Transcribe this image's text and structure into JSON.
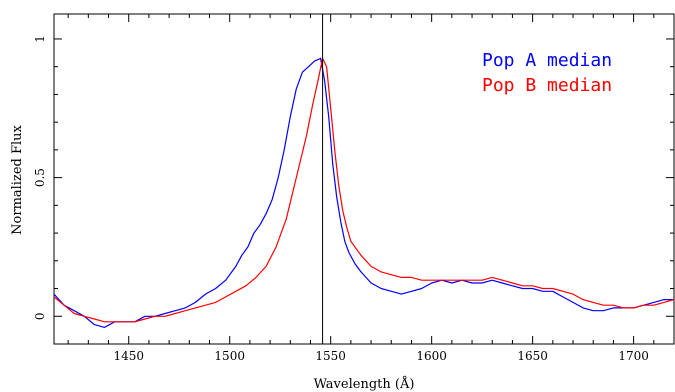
{
  "chart_data": {
    "type": "line",
    "xlabel": "Wavelength (Å)",
    "ylabel": "Normalized Flux",
    "xlim": [
      1413,
      1720
    ],
    "ylim": [
      -0.1,
      1.09
    ],
    "x_ticks": [
      "1450",
      "1500",
      "1550",
      "1600",
      "1650",
      "1700"
    ],
    "y_ticks": [
      "0",
      "0.5",
      "1"
    ],
    "vertical_line_x": 1546,
    "legend_position": "top-right",
    "grid": false,
    "series": [
      {
        "name": "Pop A median",
        "color": "#0000ff",
        "x": [
          1413,
          1418,
          1423,
          1428,
          1433,
          1438,
          1443,
          1448,
          1453,
          1458,
          1463,
          1468,
          1473,
          1478,
          1483,
          1488,
          1493,
          1498,
          1503,
          1506,
          1509,
          1512,
          1515,
          1518,
          1521,
          1524,
          1527,
          1530,
          1533,
          1536,
          1539,
          1542,
          1545,
          1547,
          1549,
          1551,
          1553,
          1555,
          1557,
          1559,
          1562,
          1565,
          1570,
          1575,
          1580,
          1585,
          1590,
          1595,
          1600,
          1605,
          1610,
          1615,
          1620,
          1625,
          1630,
          1635,
          1640,
          1645,
          1650,
          1655,
          1660,
          1665,
          1670,
          1675,
          1680,
          1685,
          1690,
          1695,
          1700,
          1705,
          1710,
          1715,
          1720
        ],
        "y": [
          0.08,
          0.04,
          0.02,
          0.0,
          -0.03,
          -0.04,
          -0.02,
          -0.02,
          -0.02,
          0.0,
          0.0,
          0.01,
          0.02,
          0.03,
          0.05,
          0.08,
          0.1,
          0.13,
          0.18,
          0.22,
          0.25,
          0.3,
          0.33,
          0.37,
          0.42,
          0.5,
          0.6,
          0.72,
          0.82,
          0.88,
          0.9,
          0.92,
          0.93,
          0.85,
          0.72,
          0.55,
          0.43,
          0.34,
          0.27,
          0.23,
          0.19,
          0.16,
          0.12,
          0.1,
          0.09,
          0.08,
          0.09,
          0.1,
          0.12,
          0.13,
          0.12,
          0.13,
          0.12,
          0.12,
          0.13,
          0.12,
          0.11,
          0.1,
          0.1,
          0.09,
          0.09,
          0.07,
          0.05,
          0.03,
          0.02,
          0.02,
          0.03,
          0.03,
          0.03,
          0.04,
          0.05,
          0.06,
          0.06
        ]
      },
      {
        "name": "Pop B median",
        "color": "#ff0000",
        "x": [
          1413,
          1418,
          1423,
          1428,
          1433,
          1438,
          1443,
          1448,
          1453,
          1458,
          1463,
          1468,
          1473,
          1478,
          1483,
          1488,
          1493,
          1498,
          1503,
          1508,
          1513,
          1518,
          1523,
          1528,
          1533,
          1538,
          1541,
          1544,
          1546,
          1548,
          1550,
          1552,
          1554,
          1556,
          1558,
          1560,
          1565,
          1570,
          1575,
          1580,
          1585,
          1590,
          1595,
          1600,
          1605,
          1610,
          1615,
          1620,
          1625,
          1630,
          1635,
          1640,
          1645,
          1650,
          1655,
          1660,
          1665,
          1670,
          1675,
          1680,
          1685,
          1690,
          1695,
          1700,
          1705,
          1710,
          1715,
          1720
        ],
        "y": [
          0.07,
          0.04,
          0.01,
          0.0,
          -0.01,
          -0.02,
          -0.02,
          -0.02,
          -0.02,
          -0.01,
          0.0,
          0.0,
          0.01,
          0.02,
          0.03,
          0.04,
          0.05,
          0.07,
          0.09,
          0.11,
          0.14,
          0.18,
          0.25,
          0.35,
          0.5,
          0.65,
          0.76,
          0.86,
          0.93,
          0.9,
          0.75,
          0.6,
          0.47,
          0.38,
          0.32,
          0.27,
          0.22,
          0.18,
          0.16,
          0.15,
          0.14,
          0.14,
          0.13,
          0.13,
          0.13,
          0.13,
          0.13,
          0.13,
          0.13,
          0.14,
          0.13,
          0.12,
          0.11,
          0.11,
          0.1,
          0.1,
          0.09,
          0.08,
          0.06,
          0.05,
          0.04,
          0.04,
          0.03,
          0.03,
          0.04,
          0.04,
          0.05,
          0.06
        ]
      }
    ]
  }
}
